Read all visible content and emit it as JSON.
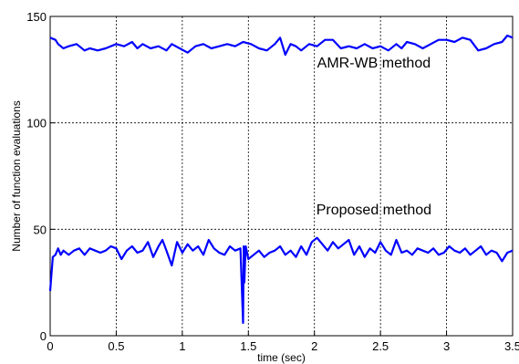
{
  "chart_data": {
    "type": "line",
    "xlabel": "time (sec)",
    "ylabel": "Number of function evaluations",
    "xlim": [
      0,
      3.5
    ],
    "ylim": [
      0,
      150
    ],
    "x_ticks": [
      0,
      0.5,
      1,
      1.5,
      2,
      2.5,
      3,
      3.5
    ],
    "x_tick_labels": [
      "0",
      "0.5",
      "1",
      "1.5",
      "2",
      "2.5",
      "3",
      "3.5"
    ],
    "y_ticks": [
      0,
      50,
      100,
      150
    ],
    "y_tick_labels": [
      "0",
      "50",
      "100",
      "150"
    ],
    "grid": true,
    "line_color": "#0000ff",
    "annotations": [
      {
        "text": "AMR-WB method",
        "x": 2.45,
        "y": 126
      },
      {
        "text": "Proposed method",
        "x": 2.45,
        "y": 57
      }
    ],
    "series": [
      {
        "x": [
          0,
          0.04,
          0.06,
          0.1,
          0.14,
          0.2,
          0.26,
          0.3,
          0.36,
          0.42,
          0.5,
          0.56,
          0.62,
          0.66,
          0.7,
          0.76,
          0.82,
          0.88,
          0.92,
          0.98,
          1.04,
          1.1,
          1.16,
          1.22,
          1.28,
          1.34,
          1.4,
          1.46,
          1.52,
          1.58,
          1.64,
          1.7,
          1.74,
          1.78,
          1.82,
          1.86,
          1.9,
          1.96,
          2.02,
          2.08,
          2.14,
          2.2,
          2.26,
          2.32,
          2.38,
          2.44,
          2.5,
          2.56,
          2.62,
          2.66,
          2.7,
          2.76,
          2.82,
          2.88,
          2.94,
          3,
          3.06,
          3.12,
          3.18,
          3.24,
          3.3,
          3.36,
          3.42,
          3.46,
          3.5
        ],
        "values": [
          140,
          139,
          137,
          135,
          136,
          137,
          134,
          135,
          134,
          135,
          137,
          136,
          138,
          135,
          137,
          135,
          136,
          134,
          137,
          135,
          133,
          136,
          137,
          135,
          136,
          137,
          136,
          138,
          137,
          135,
          134,
          137,
          140,
          132,
          137,
          136,
          134,
          137,
          136,
          139,
          139,
          135,
          136,
          135,
          137,
          135,
          136,
          134,
          137,
          135,
          138,
          137,
          135,
          137,
          139,
          139,
          138,
          140,
          139,
          134,
          135,
          137,
          138,
          141,
          140
        ]
      },
      {
        "x": [
          0,
          0.02,
          0.04,
          0.06,
          0.08,
          0.1,
          0.14,
          0.18,
          0.22,
          0.26,
          0.3,
          0.34,
          0.38,
          0.42,
          0.46,
          0.5,
          0.54,
          0.58,
          0.62,
          0.66,
          0.7,
          0.74,
          0.78,
          0.82,
          0.85,
          0.88,
          0.92,
          0.96,
          1,
          1.04,
          1.08,
          1.12,
          1.16,
          1.2,
          1.24,
          1.28,
          1.32,
          1.36,
          1.4,
          1.44,
          1.46,
          1.465,
          1.47,
          1.475,
          1.48,
          1.5,
          1.54,
          1.58,
          1.62,
          1.66,
          1.7,
          1.74,
          1.78,
          1.82,
          1.86,
          1.9,
          1.94,
          1.98,
          2.02,
          2.06,
          2.1,
          2.14,
          2.18,
          2.22,
          2.26,
          2.3,
          2.34,
          2.38,
          2.42,
          2.46,
          2.5,
          2.54,
          2.58,
          2.62,
          2.66,
          2.7,
          2.74,
          2.78,
          2.82,
          2.86,
          2.9,
          2.94,
          2.98,
          3.02,
          3.06,
          3.1,
          3.14,
          3.18,
          3.22,
          3.26,
          3.3,
          3.34,
          3.38,
          3.42,
          3.46,
          3.5
        ],
        "values": [
          21,
          37,
          38,
          41,
          38,
          40,
          38,
          40,
          41,
          38,
          41,
          40,
          39,
          40,
          42,
          41,
          36,
          40,
          42,
          39,
          40,
          44,
          37,
          42,
          45,
          40,
          33,
          44,
          39,
          43,
          40,
          42,
          38,
          45,
          41,
          39,
          38,
          42,
          40,
          41,
          6,
          42,
          25,
          35,
          42,
          36,
          38,
          40,
          37,
          39,
          40,
          42,
          38,
          40,
          37,
          42,
          38,
          44,
          46,
          43,
          40,
          44,
          41,
          43,
          45,
          38,
          42,
          37,
          41,
          39,
          44,
          40,
          38,
          45,
          39,
          40,
          38,
          41,
          40,
          39,
          41,
          38,
          39,
          42,
          40,
          39,
          41,
          38,
          40,
          42,
          38,
          40,
          39,
          35,
          39,
          40
        ]
      }
    ]
  }
}
